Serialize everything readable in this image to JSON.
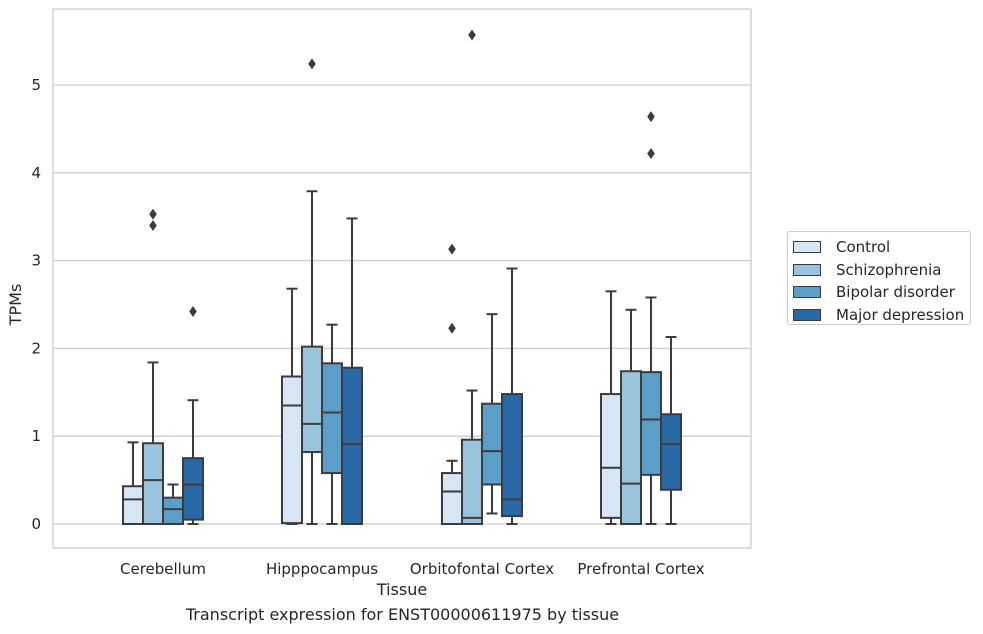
{
  "chart_data": {
    "type": "box",
    "title": "",
    "caption": "Transcript expression for ENST00000611975 by tissue",
    "xlabel": "Tissue",
    "ylabel": "TPMs",
    "ylim": [
      -0.27,
      5.87
    ],
    "yticks": [
      0,
      1,
      2,
      3,
      4,
      5
    ],
    "grid": "horizontal",
    "legend_position": "right",
    "categories": [
      "Cerebellum",
      "Hipppocampus",
      "Orbitofontal Cortex",
      "Prefrontal Cortex"
    ],
    "series": [
      {
        "name": "Control",
        "color": "#d6e6f4",
        "boxes": [
          {
            "min": 0.0,
            "q1": 0.0,
            "median": 0.28,
            "q3": 0.43,
            "max": 0.93,
            "outliers": []
          },
          {
            "min": 0.0,
            "q1": 0.01,
            "median": 1.35,
            "q3": 1.68,
            "max": 2.68,
            "outliers": []
          },
          {
            "min": 0.0,
            "q1": 0.0,
            "median": 0.37,
            "q3": 0.58,
            "max": 0.72,
            "outliers": [
              2.23,
              3.13
            ]
          },
          {
            "min": 0.0,
            "q1": 0.07,
            "median": 0.64,
            "q3": 1.48,
            "max": 2.65,
            "outliers": []
          }
        ]
      },
      {
        "name": "Schizophrenia",
        "color": "#9ac4de",
        "boxes": [
          {
            "min": 0.0,
            "q1": 0.0,
            "median": 0.5,
            "q3": 0.92,
            "max": 1.84,
            "outliers": [
              3.4,
              3.53
            ]
          },
          {
            "min": 0.0,
            "q1": 0.82,
            "median": 1.14,
            "q3": 2.02,
            "max": 3.79,
            "outliers": [
              5.24
            ]
          },
          {
            "min": 0.0,
            "q1": 0.0,
            "median": 0.07,
            "q3": 0.96,
            "max": 1.52,
            "outliers": [
              5.57
            ]
          },
          {
            "min": 0.0,
            "q1": 0.0,
            "median": 0.46,
            "q3": 1.74,
            "max": 2.44,
            "outliers": []
          }
        ]
      },
      {
        "name": "Bipolar disorder",
        "color": "#5b9ec8",
        "boxes": [
          {
            "min": 0.0,
            "q1": 0.0,
            "median": 0.17,
            "q3": 0.3,
            "max": 0.45,
            "outliers": []
          },
          {
            "min": 0.0,
            "q1": 0.58,
            "median": 1.27,
            "q3": 1.83,
            "max": 2.27,
            "outliers": []
          },
          {
            "min": 0.12,
            "q1": 0.45,
            "median": 0.83,
            "q3": 1.37,
            "max": 2.39,
            "outliers": []
          },
          {
            "min": 0.0,
            "q1": 0.56,
            "median": 1.19,
            "q3": 1.73,
            "max": 2.58,
            "outliers": [
              4.22,
              4.64
            ]
          }
        ]
      },
      {
        "name": "Major depression",
        "color": "#2a69a8",
        "boxes": [
          {
            "min": 0.0,
            "q1": 0.05,
            "median": 0.45,
            "q3": 0.75,
            "max": 1.41,
            "outliers": [
              2.42
            ]
          },
          {
            "min": 0.0,
            "q1": 0.0,
            "median": 0.91,
            "q3": 1.78,
            "max": 3.48,
            "outliers": []
          },
          {
            "min": 0.0,
            "q1": 0.09,
            "median": 0.28,
            "q3": 1.48,
            "max": 2.91,
            "outliers": []
          },
          {
            "min": 0.0,
            "q1": 0.39,
            "median": 0.91,
            "q3": 1.25,
            "max": 2.13,
            "outliers": []
          }
        ]
      }
    ]
  }
}
